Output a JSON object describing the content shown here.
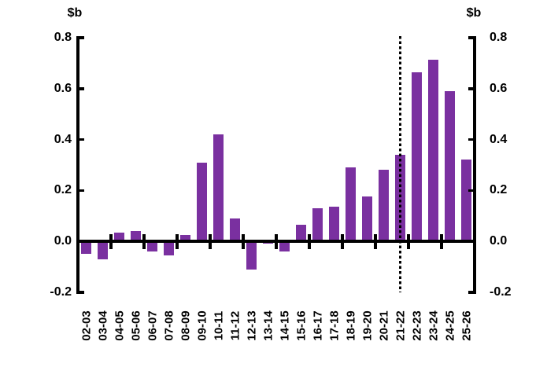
{
  "chart_data": {
    "type": "bar",
    "title": "",
    "left_axis_label": "$b",
    "right_axis_label": "$b",
    "categories": [
      "02-03",
      "03-04",
      "04-05",
      "05-06",
      "06-07",
      "07-08",
      "08-09",
      "09-10",
      "10-11",
      "11-12",
      "12-13",
      "13-14",
      "14-15",
      "15-16",
      "16-17",
      "17-18",
      "18-19",
      "19-20",
      "20-21",
      "21-22",
      "22-23",
      "23-24",
      "24-25",
      "25-26"
    ],
    "values": [
      -0.05,
      -0.07,
      0.035,
      0.04,
      -0.04,
      -0.055,
      0.025,
      0.31,
      0.42,
      0.09,
      -0.11,
      -0.01,
      -0.04,
      0.065,
      0.13,
      0.135,
      0.29,
      0.175,
      0.28,
      0.34,
      0.665,
      0.715,
      0.59,
      0.32
    ],
    "yticks": [
      {
        "value": 0.8,
        "label": "0.8"
      },
      {
        "value": 0.6,
        "label": "0.6"
      },
      {
        "value": 0.4,
        "label": "0.4"
      },
      {
        "value": 0.2,
        "label": "0.2"
      },
      {
        "value": 0.0,
        "label": "0.0"
      },
      {
        "value": -0.2,
        "label": "-0.2"
      }
    ],
    "ylim": [
      -0.2,
      0.8
    ],
    "grid": false,
    "legend_position": "none",
    "bar_color": "#7A30A0",
    "axis_color": "#000000",
    "dotted_line_category": "21-22",
    "x_tick_interval": 2
  }
}
